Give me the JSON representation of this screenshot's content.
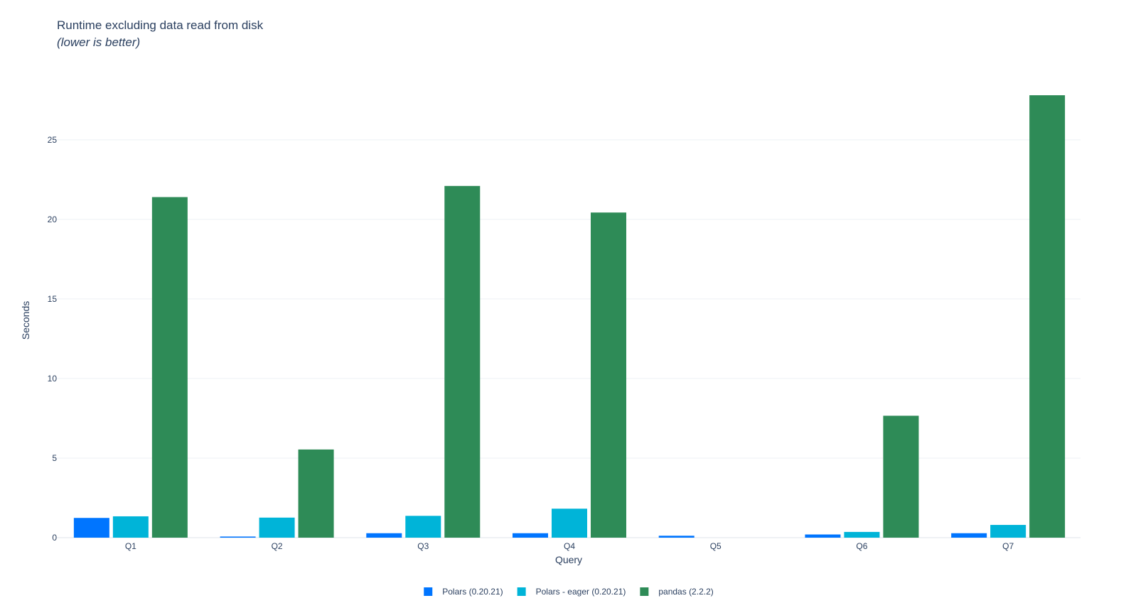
{
  "chart_data": {
    "type": "bar",
    "title": "Runtime excluding data read from disk",
    "subtitle": "(lower is better)",
    "xlabel": "Query",
    "ylabel": "Seconds",
    "categories": [
      "Q1",
      "Q2",
      "Q3",
      "Q4",
      "Q5",
      "Q6",
      "Q7"
    ],
    "ylim": [
      0,
      29.5
    ],
    "yticks": [
      0,
      5,
      10,
      15,
      20,
      25
    ],
    "grid": true,
    "legend_position": "bottom-center",
    "series": [
      {
        "name": "Polars (0.20.21)",
        "color": "#0075ff",
        "values": [
          1.24,
          0.07,
          0.28,
          0.28,
          0.12,
          0.2,
          0.28
        ]
      },
      {
        "name": "Polars - eager (0.20.21)",
        "color": "#00b4d8",
        "values": [
          1.34,
          1.26,
          1.37,
          1.82,
          0,
          0.36,
          0.8
        ]
      },
      {
        "name": "pandas (2.2.2)",
        "color": "#2e8b57",
        "values": [
          21.4,
          5.54,
          22.1,
          20.43,
          0,
          7.66,
          27.8
        ]
      }
    ]
  }
}
